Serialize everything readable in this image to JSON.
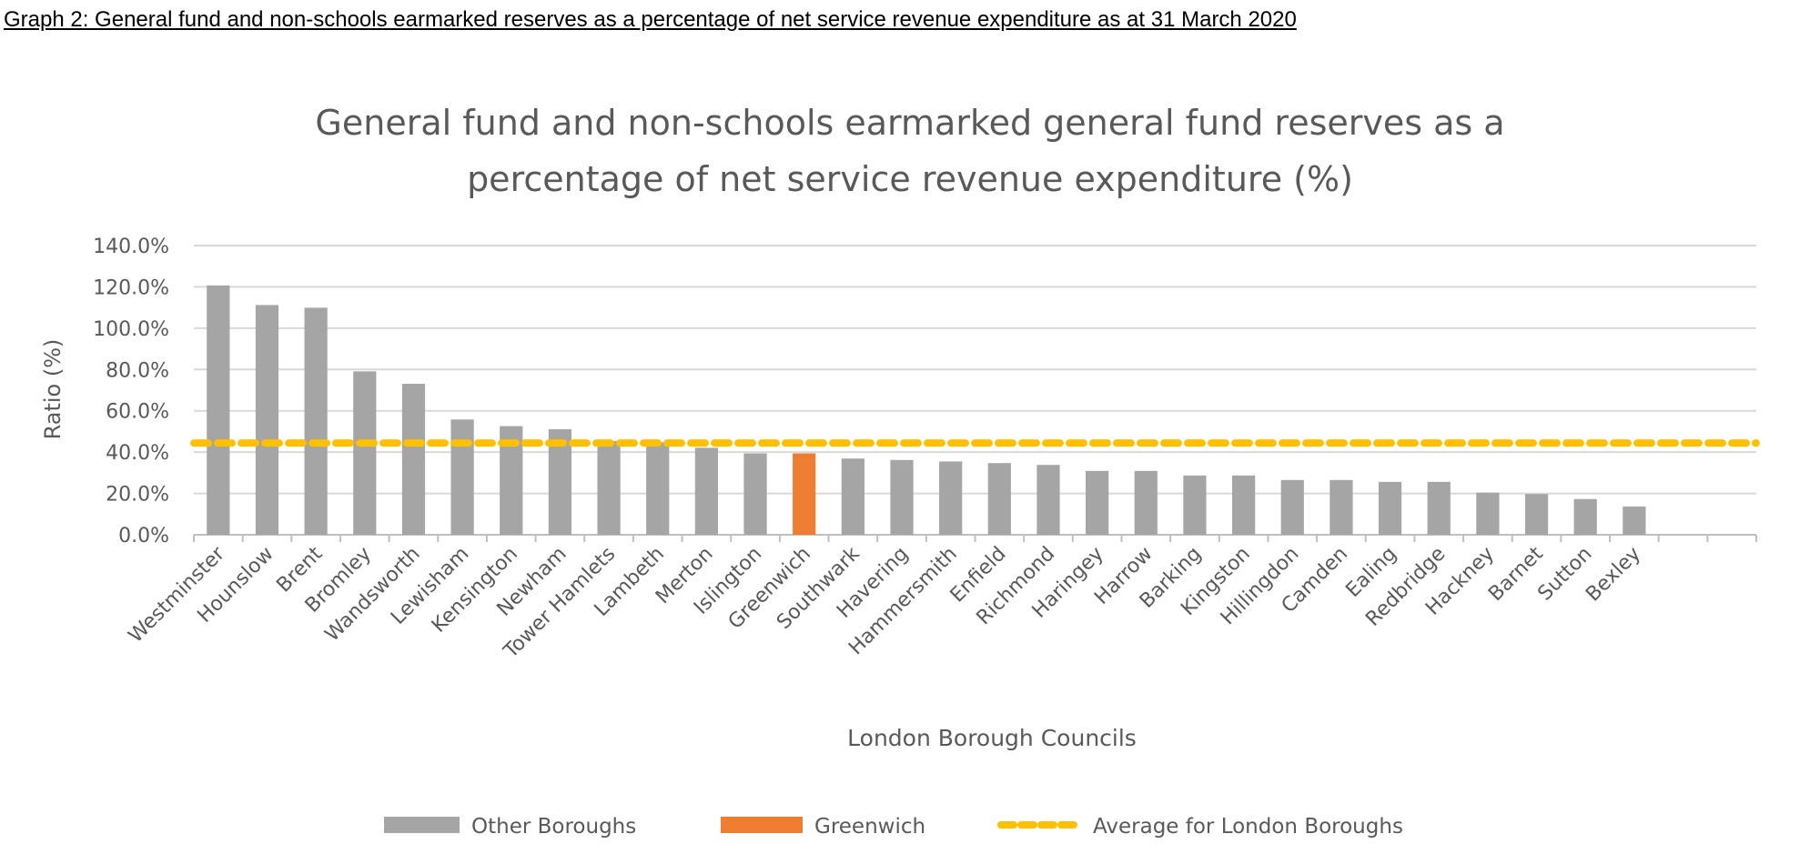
{
  "caption": "Graph 2: General fund and non-schools earmarked reserves as a percentage of net service revenue expenditure as at 31 March 2020",
  "chart_data": {
    "type": "bar",
    "title": [
      "General fund and non-schools earmarked general fund reserves as a",
      "percentage of net service revenue expenditure (%)"
    ],
    "xlabel": "London Borough Councils",
    "ylabel": "Ratio (%)",
    "ylim": [
      0,
      140
    ],
    "yticks": [
      "0.0%",
      "20.0%",
      "40.0%",
      "60.0%",
      "80.0%",
      "100.0%",
      "120.0%",
      "140.0%"
    ],
    "grid": true,
    "legend_position": "bottom",
    "categories": [
      "Westminster",
      "Hounslow",
      "Brent",
      "Bromley",
      "Wandsworth",
      "Lewisham",
      "Kensington",
      "Newham",
      "Tower Hamlets",
      "Lambeth",
      "Merton",
      "Islington",
      "Greenwich",
      "Southwark",
      "Havering",
      "Hammersmith",
      "Enfield",
      "Richmond",
      "Haringey",
      "Harrow",
      "Barking",
      "Kingston",
      "Hillingdon",
      "Camden",
      "Ealing",
      "Redbridge",
      "Hackney",
      "Barnet",
      "Sutton",
      "Bexley"
    ],
    "values": [
      120.7,
      111.2,
      109.9,
      79.1,
      73.1,
      55.8,
      52.6,
      51.1,
      45.4,
      44.8,
      42.1,
      39.4,
      39.4,
      36.9,
      36.2,
      35.5,
      34.7,
      33.8,
      30.9,
      30.9,
      28.7,
      28.7,
      26.5,
      26.5,
      25.6,
      25.6,
      20.4,
      19.7,
      17.3,
      13.7
    ],
    "highlight": "Greenwich",
    "average": 44.4,
    "legend": [
      "Other Boroughs",
      "Greenwich",
      "Average for London Boroughs"
    ],
    "colors": {
      "other": "#a5a5a5",
      "highlight": "#ed7d31",
      "average": "#ffc000",
      "grid": "#d9d9d9",
      "text": "#595959"
    }
  }
}
